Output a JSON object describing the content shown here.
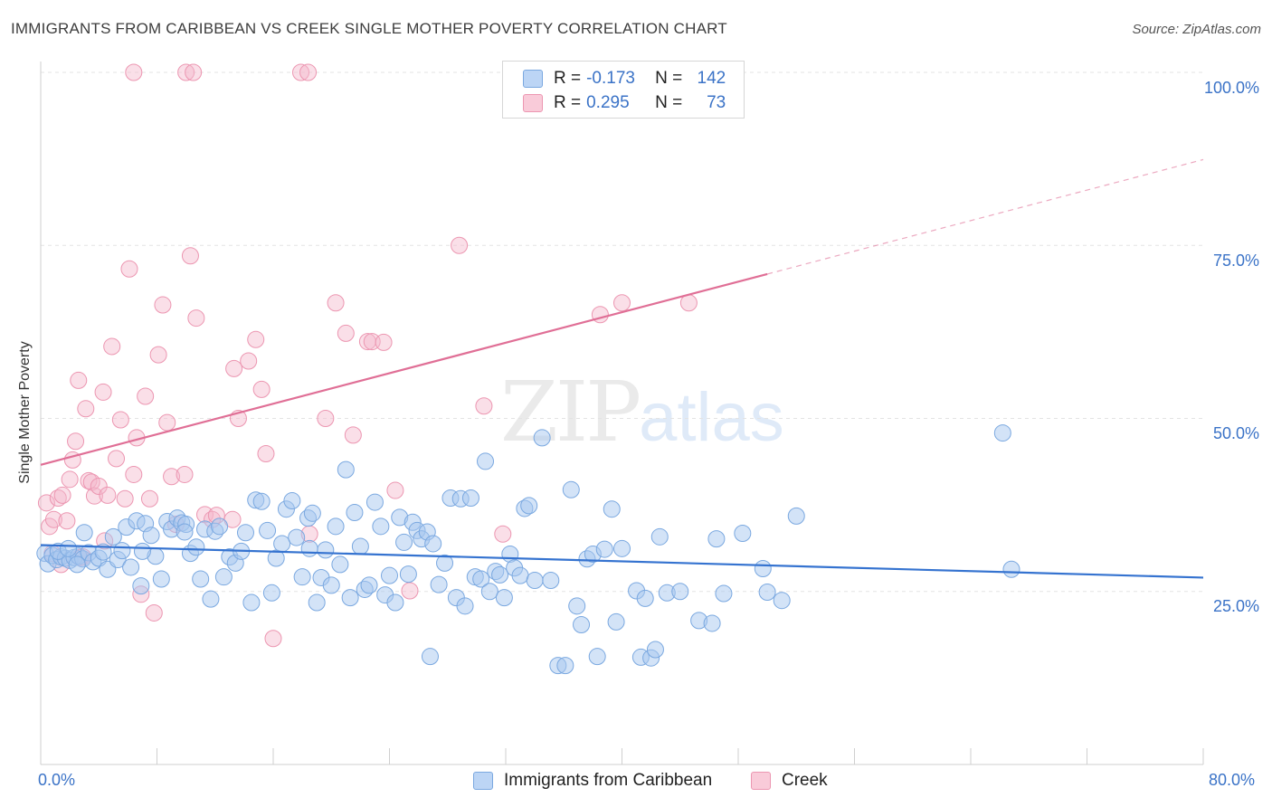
{
  "title": "IMMIGRANTS FROM CARIBBEAN VS CREEK SINGLE MOTHER POVERTY CORRELATION CHART",
  "source": "Source: ZipAtlas.com",
  "watermark": {
    "zip": "ZIP",
    "atlas": "atlas"
  },
  "legend": {
    "rows": [
      {
        "r_label": "R =",
        "r_value": "-0.173",
        "n_label": "N =",
        "n_value": "142",
        "color": "#a8c8f0"
      },
      {
        "r_label": "R =",
        "r_value": "0.295",
        "n_label": "N =",
        "n_value": "73",
        "color": "#f5b8cb"
      }
    ]
  },
  "bottom_legend": {
    "caribbean": "Immigrants from Caribbean",
    "creek": "Creek"
  },
  "axis_labels": {
    "y": "Single Mother Poverty",
    "x_min": "0.0%",
    "x_max": "80.0%",
    "y_ticks": [
      "100.0%",
      "75.0%",
      "50.0%",
      "25.0%"
    ]
  },
  "chart_data": {
    "type": "scatter",
    "ylabel": "Single Mother Poverty",
    "xlim": [
      0,
      80
    ],
    "ylim": [
      0,
      100
    ],
    "y_ticks": [
      25,
      50,
      75,
      100
    ],
    "grid": "horizontal dashed",
    "legend_placement": "top-center",
    "series": [
      {
        "name": "Immigrants from Caribbean",
        "color": "#a8c8f0",
        "stroke": "#7aa8e0",
        "trend": {
          "x": [
            0,
            80
          ],
          "y": [
            31.7,
            27.0
          ],
          "color": "#3573d0"
        },
        "points": [
          [
            0.3,
            30.5
          ],
          [
            0.5,
            29.0
          ],
          [
            0.8,
            30.2
          ],
          [
            1.1,
            29.6
          ],
          [
            1.4,
            30.0
          ],
          [
            1.7,
            29.8
          ],
          [
            2.0,
            29.5
          ],
          [
            2.3,
            29.9
          ],
          [
            2.6,
            30.1
          ],
          [
            2.9,
            29.7
          ],
          [
            1.2,
            30.8
          ],
          [
            1.9,
            31.2
          ],
          [
            2.5,
            28.9
          ],
          [
            3.0,
            33.5
          ],
          [
            3.3,
            30.6
          ],
          [
            3.6,
            29.3
          ],
          [
            4.0,
            29.8
          ],
          [
            4.3,
            30.7
          ],
          [
            4.6,
            28.2
          ],
          [
            5.0,
            32.9
          ],
          [
            5.3,
            29.6
          ],
          [
            5.6,
            30.9
          ],
          [
            5.9,
            34.3
          ],
          [
            6.2,
            28.5
          ],
          [
            6.6,
            35.2
          ],
          [
            6.9,
            25.8
          ],
          [
            7.2,
            34.8
          ],
          [
            7.6,
            33.1
          ],
          [
            7.9,
            30.1
          ],
          [
            8.3,
            26.8
          ],
          [
            8.7,
            35.1
          ],
          [
            9.0,
            34.0
          ],
          [
            9.4,
            35.6
          ],
          [
            9.7,
            34.9
          ],
          [
            10.0,
            34.7
          ],
          [
            10.3,
            30.5
          ],
          [
            10.7,
            31.4
          ],
          [
            11.0,
            26.8
          ],
          [
            11.3,
            34.0
          ],
          [
            11.7,
            23.9
          ],
          [
            12.0,
            33.7
          ],
          [
            12.3,
            34.4
          ],
          [
            12.6,
            27.1
          ],
          [
            13.0,
            30.0
          ],
          [
            13.4,
            29.1
          ],
          [
            13.8,
            30.8
          ],
          [
            14.1,
            33.5
          ],
          [
            14.5,
            23.4
          ],
          [
            14.8,
            38.2
          ],
          [
            15.2,
            38.0
          ],
          [
            15.6,
            33.8
          ],
          [
            15.9,
            24.8
          ],
          [
            16.2,
            29.8
          ],
          [
            16.6,
            31.9
          ],
          [
            16.9,
            36.9
          ],
          [
            17.3,
            38.1
          ],
          [
            17.6,
            32.8
          ],
          [
            18.0,
            27.1
          ],
          [
            18.4,
            35.6
          ],
          [
            18.7,
            36.3
          ],
          [
            19.0,
            23.4
          ],
          [
            19.3,
            27.0
          ],
          [
            19.6,
            31.0
          ],
          [
            20.0,
            25.9
          ],
          [
            20.3,
            34.4
          ],
          [
            20.6,
            28.9
          ],
          [
            21.0,
            42.6
          ],
          [
            21.3,
            24.1
          ],
          [
            21.6,
            36.4
          ],
          [
            22.0,
            31.5
          ],
          [
            22.3,
            25.3
          ],
          [
            22.6,
            25.9
          ],
          [
            23.0,
            37.9
          ],
          [
            23.4,
            34.4
          ],
          [
            23.7,
            24.5
          ],
          [
            24.0,
            27.3
          ],
          [
            24.4,
            23.4
          ],
          [
            24.7,
            35.7
          ],
          [
            25.0,
            32.1
          ],
          [
            25.3,
            27.5
          ],
          [
            25.6,
            35.0
          ],
          [
            25.9,
            33.8
          ],
          [
            26.2,
            32.6
          ],
          [
            26.6,
            33.6
          ],
          [
            27.0,
            31.9
          ],
          [
            27.4,
            26.0
          ],
          [
            27.8,
            29.1
          ],
          [
            28.2,
            38.5
          ],
          [
            28.6,
            24.1
          ],
          [
            28.9,
            38.4
          ],
          [
            29.2,
            22.9
          ],
          [
            29.6,
            38.5
          ],
          [
            29.9,
            27.1
          ],
          [
            30.3,
            26.8
          ],
          [
            30.6,
            43.8
          ],
          [
            30.9,
            25.0
          ],
          [
            31.3,
            27.9
          ],
          [
            31.6,
            27.4
          ],
          [
            31.9,
            24.1
          ],
          [
            32.3,
            30.4
          ],
          [
            32.6,
            28.4
          ],
          [
            33.0,
            27.3
          ],
          [
            33.3,
            37.0
          ],
          [
            33.6,
            37.4
          ],
          [
            34.0,
            26.6
          ],
          [
            34.5,
            47.2
          ],
          [
            35.1,
            26.6
          ],
          [
            35.6,
            14.3
          ],
          [
            36.1,
            14.3
          ],
          [
            36.5,
            39.7
          ],
          [
            36.9,
            22.9
          ],
          [
            37.2,
            20.2
          ],
          [
            37.6,
            29.7
          ],
          [
            38.0,
            30.4
          ],
          [
            38.3,
            15.6
          ],
          [
            38.8,
            31.1
          ],
          [
            39.3,
            36.9
          ],
          [
            39.6,
            20.6
          ],
          [
            40.0,
            31.2
          ],
          [
            41.0,
            25.1
          ],
          [
            41.3,
            15.5
          ],
          [
            41.6,
            24.0
          ],
          [
            42.0,
            15.4
          ],
          [
            42.3,
            16.6
          ],
          [
            42.6,
            32.9
          ],
          [
            43.1,
            24.8
          ],
          [
            44.0,
            25.0
          ],
          [
            45.3,
            20.8
          ],
          [
            46.2,
            20.4
          ],
          [
            46.5,
            32.6
          ],
          [
            47.0,
            24.7
          ],
          [
            48.3,
            33.4
          ],
          [
            49.7,
            28.3
          ],
          [
            50.0,
            24.9
          ],
          [
            51.0,
            23.7
          ],
          [
            52.0,
            35.9
          ],
          [
            26.8,
            15.6
          ],
          [
            18.5,
            31.2
          ],
          [
            9.9,
            33.6
          ],
          [
            7.0,
            30.8
          ],
          [
            66.2,
            47.9
          ],
          [
            66.8,
            28.2
          ]
        ]
      },
      {
        "name": "Creek",
        "color": "#f5b8cb",
        "stroke": "#ec96b1",
        "trend": {
          "x": [
            0,
            80
          ],
          "y": [
            43.3,
            87.4
          ],
          "solid_until_x": 50,
          "color": "#e06f96"
        },
        "points": [
          [
            0.4,
            37.8
          ],
          [
            0.6,
            34.4
          ],
          [
            0.9,
            35.4
          ],
          [
            1.2,
            38.5
          ],
          [
            1.5,
            38.9
          ],
          [
            1.8,
            35.2
          ],
          [
            2.0,
            41.2
          ],
          [
            2.2,
            44.0
          ],
          [
            2.4,
            46.7
          ],
          [
            2.6,
            55.5
          ],
          [
            2.9,
            30.0
          ],
          [
            3.1,
            51.4
          ],
          [
            3.3,
            41.0
          ],
          [
            3.5,
            40.8
          ],
          [
            3.7,
            38.8
          ],
          [
            4.0,
            40.2
          ],
          [
            4.3,
            53.8
          ],
          [
            4.6,
            38.9
          ],
          [
            4.9,
            60.4
          ],
          [
            5.2,
            44.2
          ],
          [
            5.5,
            49.8
          ],
          [
            5.8,
            38.4
          ],
          [
            6.1,
            71.6
          ],
          [
            6.4,
            41.9
          ],
          [
            6.6,
            47.2
          ],
          [
            6.9,
            24.6
          ],
          [
            7.2,
            53.2
          ],
          [
            7.5,
            38.4
          ],
          [
            7.8,
            21.9
          ],
          [
            8.1,
            59.2
          ],
          [
            8.4,
            66.4
          ],
          [
            8.7,
            49.4
          ],
          [
            9.0,
            41.6
          ],
          [
            9.3,
            34.7
          ],
          [
            9.9,
            41.9
          ],
          [
            10.3,
            73.5
          ],
          [
            10.7,
            64.5
          ],
          [
            11.3,
            36.1
          ],
          [
            11.8,
            35.4
          ],
          [
            12.1,
            36.0
          ],
          [
            13.3,
            57.2
          ],
          [
            13.6,
            50.0
          ],
          [
            14.3,
            58.3
          ],
          [
            14.8,
            61.4
          ],
          [
            15.2,
            54.2
          ],
          [
            15.5,
            44.9
          ],
          [
            16.0,
            18.2
          ],
          [
            18.5,
            33.3
          ],
          [
            19.6,
            50.0
          ],
          [
            20.3,
            66.7
          ],
          [
            21.0,
            62.3
          ],
          [
            21.5,
            47.6
          ],
          [
            22.5,
            61.1
          ],
          [
            22.8,
            61.1
          ],
          [
            23.6,
            61.0
          ],
          [
            24.4,
            39.6
          ],
          [
            25.4,
            25.1
          ],
          [
            28.8,
            75.0
          ],
          [
            30.5,
            51.8
          ],
          [
            31.8,
            33.3
          ],
          [
            38.5,
            65.0
          ],
          [
            40.0,
            66.7
          ],
          [
            44.6,
            66.7
          ],
          [
            6.4,
            100
          ],
          [
            10.0,
            100
          ],
          [
            10.5,
            100
          ],
          [
            17.9,
            100
          ],
          [
            18.4,
            100
          ],
          [
            4.4,
            32.3
          ],
          [
            2.7,
            29.9
          ],
          [
            1.4,
            28.9
          ],
          [
            0.8,
            30.5
          ],
          [
            13.2,
            35.4
          ]
        ]
      }
    ]
  }
}
